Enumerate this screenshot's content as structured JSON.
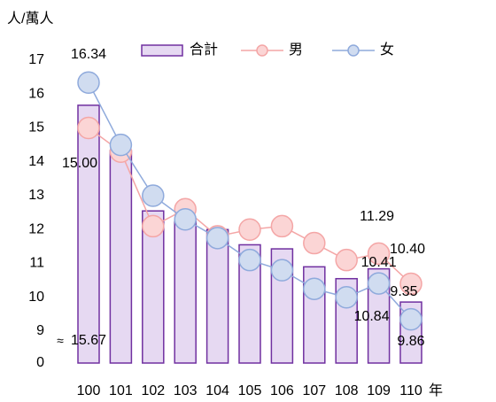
{
  "chart_data": {
    "type": "bar_line",
    "y_axis_label": "人/萬人",
    "x_axis_label": "年",
    "categories": [
      "100",
      "101",
      "102",
      "103",
      "104",
      "105",
      "106",
      "107",
      "108",
      "109",
      "110"
    ],
    "series": [
      {
        "name": "合計",
        "type": "bar",
        "color": "#e6d9f2",
        "stroke": "#7030a0",
        "label_color": "#000000",
        "values": [
          15.67,
          14.33,
          12.55,
          12.24,
          12.0,
          11.55,
          11.43,
          10.9,
          10.55,
          10.84,
          9.86
        ],
        "value_labels": [
          "15.67",
          null,
          null,
          null,
          null,
          null,
          null,
          null,
          null,
          "10.84",
          "9.86"
        ]
      },
      {
        "name": "男",
        "type": "line",
        "color": "#f4a6a6",
        "fill": "#fbd5d5",
        "label_color": "#ff0000",
        "values": [
          15.0,
          14.3,
          12.1,
          12.6,
          11.8,
          12.0,
          12.1,
          11.6,
          11.1,
          11.29,
          10.4
        ],
        "value_labels": [
          "15.00",
          null,
          null,
          null,
          null,
          null,
          null,
          null,
          null,
          "11.29",
          "10.40"
        ]
      },
      {
        "name": "女",
        "type": "line",
        "color": "#8faadc",
        "fill": "#d0dcf0",
        "label_color": "#2f5597",
        "values": [
          16.34,
          14.5,
          13.0,
          12.3,
          11.75,
          11.1,
          10.8,
          10.25,
          10.0,
          10.41,
          9.35
        ],
        "value_labels": [
          "16.34",
          null,
          null,
          null,
          null,
          null,
          null,
          null,
          null,
          "10.41",
          "9.35"
        ]
      }
    ],
    "ylim": [
      0,
      17
    ],
    "axis_break": [
      0,
      9
    ],
    "yticks": [
      0,
      9,
      10,
      11,
      12,
      13,
      14,
      15,
      16,
      17
    ]
  }
}
